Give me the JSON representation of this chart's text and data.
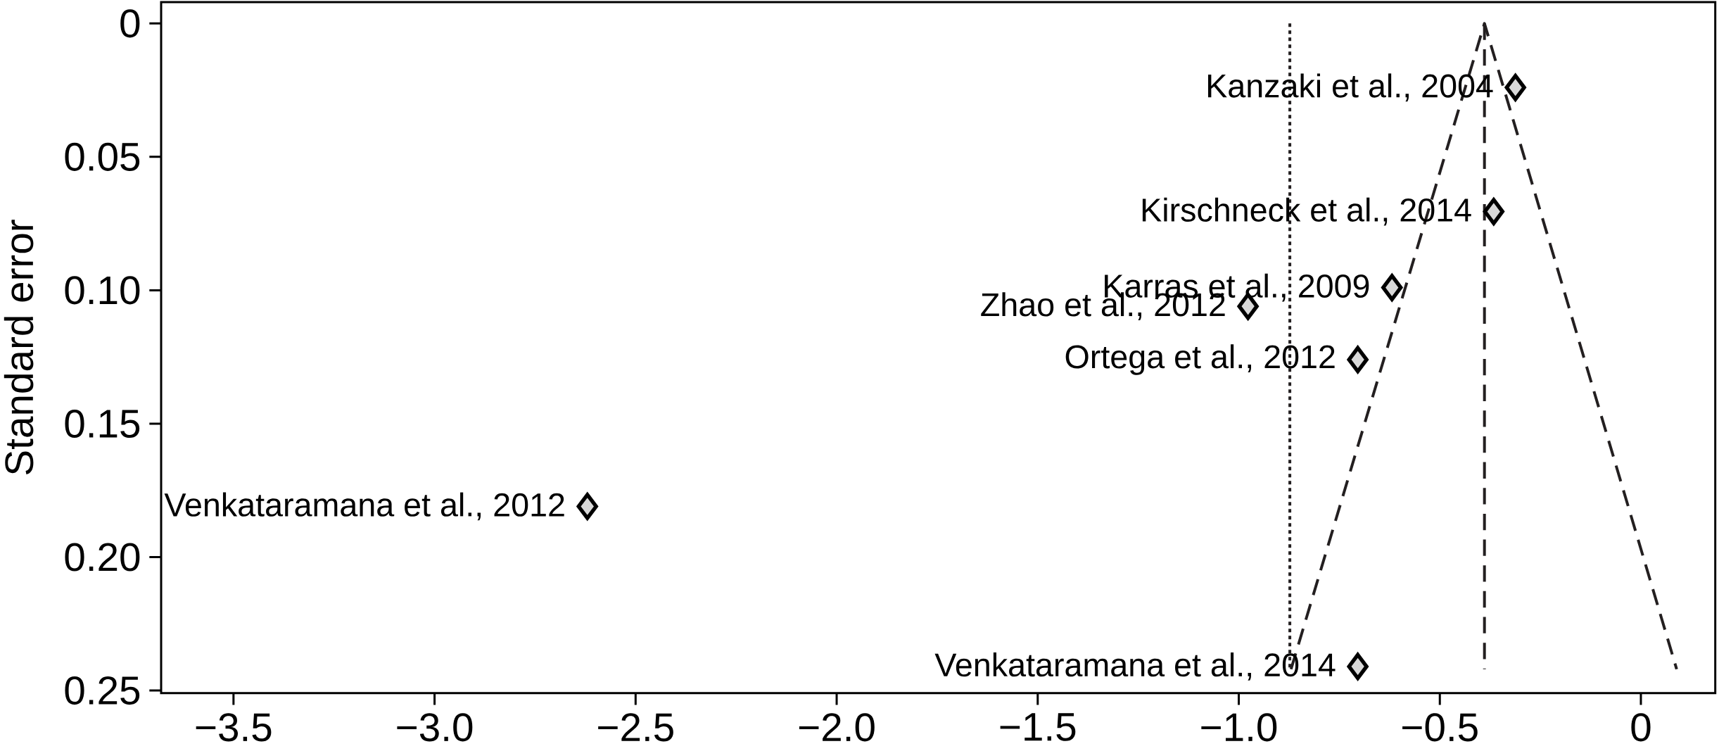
{
  "chart_data": {
    "type": "scatter",
    "ylabel": "Standard error",
    "xlim": [
      -3.68,
      0.185
    ],
    "ylim": [
      0.251,
      -0.008
    ],
    "xticks": [
      {
        "value": -3.5,
        "label": "−3.5"
      },
      {
        "value": -3.0,
        "label": "−3.0"
      },
      {
        "value": -2.5,
        "label": "−2.5"
      },
      {
        "value": -2.0,
        "label": "−2.0"
      },
      {
        "value": -1.5,
        "label": "−1.5"
      },
      {
        "value": -1.0,
        "label": "−1.0"
      },
      {
        "value": -0.5,
        "label": "−0.5"
      },
      0
    ],
    "yticks": [
      0,
      0.05,
      {
        "value": 0.1,
        "label": "0.10"
      },
      0.15,
      {
        "value": 0.2,
        "label": "0.20"
      },
      0.25
    ],
    "series": [
      {
        "type": "line",
        "line_style": "dotted",
        "color": "#231f20",
        "x": [
          -0.873,
          -0.873
        ],
        "values": [
          0,
          0.242
        ]
      },
      {
        "type": "line",
        "line_style": "dashed",
        "color": "#231f20",
        "x": [
          -0.389,
          -0.389
        ],
        "values": [
          0,
          0.242
        ]
      },
      {
        "type": "line",
        "line_style": "dashed",
        "color": "#231f20",
        "x": [
          -0.87,
          -0.389,
          0.089
        ],
        "values": [
          0.242,
          0,
          0.242
        ]
      },
      {
        "marker": "diamond",
        "color": "#d9d9d9",
        "x": [
          -0.312,
          -0.366,
          -0.619,
          -0.977,
          -0.704,
          -2.62,
          -0.704
        ],
        "values": [
          0.024,
          0.0705,
          0.099,
          0.106,
          0.126,
          0.181,
          0.241
        ]
      }
    ],
    "annotations": [
      {
        "text": "Kanzaki et al., 2004",
        "x": -0.312,
        "y": 0.024
      },
      {
        "text": "Kirschneck et al., 2014",
        "x": -0.366,
        "y": 0.0705
      },
      {
        "text": "Karras et al., 2009",
        "x": -0.619,
        "y": 0.099
      },
      {
        "text": "Zhao et al., 2012",
        "x": -0.977,
        "y": 0.106
      },
      {
        "text": "Ortega et al., 2012",
        "x": -0.704,
        "y": 0.126
      },
      {
        "text": "Venkataramana et al., 2012",
        "x": -2.62,
        "y": 0.181
      },
      {
        "text": "Venkataramana et al., 2014",
        "x": -0.704,
        "y": 0.241
      }
    ]
  }
}
